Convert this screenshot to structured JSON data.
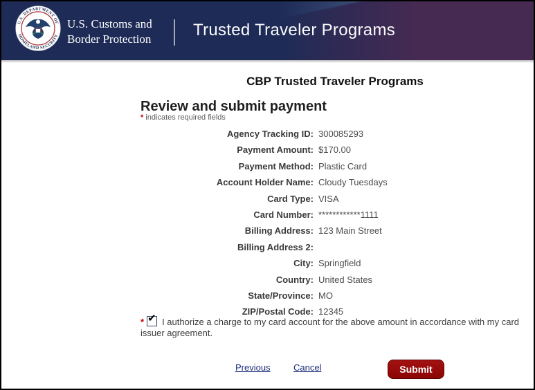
{
  "header": {
    "agency_line1": "U.S. Customs and",
    "agency_line2": "Border Protection",
    "app_title": "Trusted Traveler Programs",
    "seal": {
      "top_text": "U.S. DEPARTMENT OF",
      "bottom_text": "HOMELAND SECURITY"
    },
    "colors": {
      "navy": "#1d2b56",
      "flag_blue": "#4f638b",
      "flag_purple": "#462a52"
    }
  },
  "main": {
    "title": "CBP Trusted Traveler Programs",
    "heading": "Review and submit payment",
    "required_marker": "*",
    "required_note": "indicates required fields"
  },
  "fields": [
    {
      "label": "Agency Tracking ID:",
      "value": "300085293"
    },
    {
      "label": "Payment Amount:",
      "value": "$170.00"
    },
    {
      "label": "Payment Method:",
      "value": "Plastic Card"
    },
    {
      "label": "Account Holder Name:",
      "value": "Cloudy Tuesdays"
    },
    {
      "label": "Card Type:",
      "value": "VISA"
    },
    {
      "label": "Card Number:",
      "value": "************1111"
    },
    {
      "label": "Billing Address:",
      "value": "123 Main Street"
    },
    {
      "label": "Billing Address 2:",
      "value": ""
    },
    {
      "label": "City:",
      "value": "Springfield"
    },
    {
      "label": "Country:",
      "value": "United States"
    },
    {
      "label": "State/Province:",
      "value": "MO"
    },
    {
      "label": "ZIP/Postal Code:",
      "value": "12345"
    }
  ],
  "authorization": {
    "required_marker": "*",
    "checked": true,
    "label": "I authorize a charge to my card account for the above amount in accordance with my card issuer agreement."
  },
  "actions": {
    "previous_label": "Previous",
    "cancel_label": "Cancel",
    "submit_label": "Submit"
  },
  "icons": {
    "checkmark": "✔"
  },
  "colors": {
    "accent_red": "#8c0505",
    "link_navy": "#1c2e7d",
    "required_red": "#c00000"
  }
}
